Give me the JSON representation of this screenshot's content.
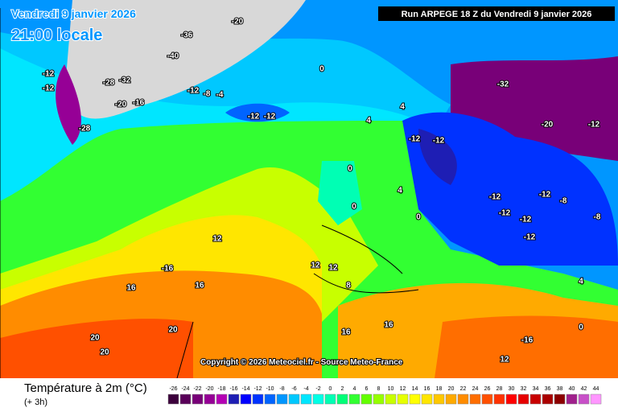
{
  "header": {
    "date": "Vendredi 9 janvier 2026",
    "time": "21:00 locale",
    "run": "Run ARPEGE 18 Z du Vendredi 9 janvier 2026"
  },
  "copyright": "Copyright © 2026 Meteociel.fr - Source Meteo-France",
  "legend": {
    "title": "Température à 2m (°C)",
    "subtitle": "(+ 3h)",
    "ticks": [
      -26,
      -24,
      -22,
      -20,
      -18,
      -16,
      -14,
      -12,
      -10,
      -8,
      -6,
      -4,
      -2,
      0,
      2,
      4,
      6,
      8,
      10,
      12,
      14,
      16,
      18,
      20,
      22,
      24,
      26,
      28,
      30,
      32,
      34,
      36,
      38,
      40,
      42,
      44
    ],
    "colors": [
      "#3c003c",
      "#5a005a",
      "#780078",
      "#960096",
      "#b400b4",
      "#1e1eb4",
      "#0000ff",
      "#0032ff",
      "#0064ff",
      "#0096ff",
      "#00c8ff",
      "#00e6ff",
      "#00ffe6",
      "#00ffb4",
      "#00ff78",
      "#32ff32",
      "#64ff00",
      "#96ff00",
      "#c8ff00",
      "#e6ff00",
      "#ffff00",
      "#ffe600",
      "#ffc800",
      "#ffaa00",
      "#ff8c00",
      "#ff6e00",
      "#ff5000",
      "#ff3200",
      "#ff0000",
      "#e60000",
      "#c80000",
      "#aa0000",
      "#8c0000",
      "#a0208c",
      "#c850c8",
      "#ff96ff"
    ]
  },
  "map_labels": [
    "-20",
    "-36",
    "-40",
    "-28",
    "-32",
    "-20",
    "-16",
    "-12",
    "-12",
    "-28",
    "-12",
    "-8",
    "-4",
    "-12",
    "-12",
    "0",
    "4",
    "4",
    "-12",
    "-12",
    "-32",
    "-20",
    "-12",
    "-12",
    "-12",
    "-8",
    "-12",
    "-12",
    "-12",
    "-8",
    "0",
    "0",
    "4",
    "0",
    "12",
    "-16",
    "16",
    "16",
    "12",
    "12",
    "8",
    "20",
    "20",
    "20",
    "16",
    "16",
    "-16",
    "12",
    "4",
    "0"
  ]
}
